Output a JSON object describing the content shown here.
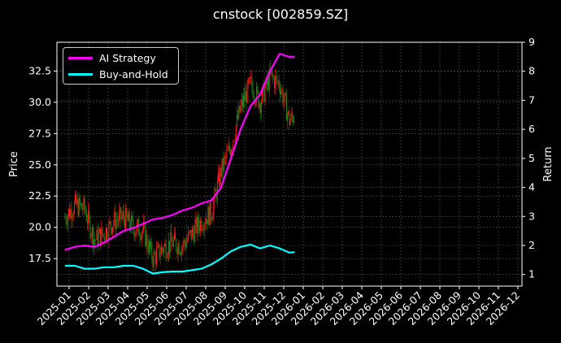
{
  "title": "cnstock [002859.SZ]",
  "colors": {
    "background": "#000000",
    "ai_strategy": "#ff00ff",
    "buy_and_hold": "#00ffff",
    "candle_up": "#ff1a1a",
    "candle_down": "#1a8c1a",
    "grid": "#555555",
    "axis": "#ffffff"
  },
  "legend": {
    "items": [
      {
        "label": "AI Strategy",
        "color": "#ff00ff"
      },
      {
        "label": "Buy-and-Hold",
        "color": "#00ffff"
      }
    ]
  },
  "chart_data": {
    "type": "line",
    "title": "cnstock [002859.SZ]",
    "xlabel": "",
    "ylabel": "Price",
    "ylabel_right": "Return",
    "grid": true,
    "legend_position": "upper left",
    "x_ticks": [
      "2025-01",
      "2025-02",
      "2025-03",
      "2025-04",
      "2025-05",
      "2025-06",
      "2025-07",
      "2025-08",
      "2025-09",
      "2025-10",
      "2025-11",
      "2025-12",
      "2026-01",
      "2026-02",
      "2026-03",
      "2026-04",
      "2026-05",
      "2026-06",
      "2026-07",
      "2026-08",
      "2026-09",
      "2026-10",
      "2026-11",
      "2026-12"
    ],
    "y_left_ticks": [
      17.5,
      20.0,
      22.5,
      25.0,
      27.5,
      30.0,
      32.5
    ],
    "y_left_range": [
      15.3,
      34.8
    ],
    "y_right_ticks": [
      1,
      2,
      3,
      4,
      5,
      6,
      7,
      8,
      9
    ],
    "y_right_range": [
      0.6,
      9.0
    ],
    "x": [
      "2024-12-25",
      "2025-01-10",
      "2025-01-25",
      "2025-02-10",
      "2025-02-25",
      "2025-03-10",
      "2025-03-25",
      "2025-04-10",
      "2025-04-25",
      "2025-05-10",
      "2025-05-25",
      "2025-06-10",
      "2025-06-25",
      "2025-07-10",
      "2025-07-25",
      "2025-08-10",
      "2025-08-25",
      "2025-09-10",
      "2025-09-25",
      "2025-10-10",
      "2025-10-25",
      "2025-11-10",
      "2025-11-25",
      "2025-12-10",
      "2025-12-18"
    ],
    "series": [
      {
        "name": "Price (candlestick close)",
        "axis": "left",
        "values": [
          20.8,
          21.8,
          21.5,
          19.0,
          19.5,
          20.5,
          20.8,
          20.0,
          19.8,
          17.5,
          18.3,
          18.8,
          18.5,
          19.5,
          20.5,
          21.2,
          24.5,
          26.5,
          29.5,
          31.5,
          30.0,
          32.0,
          31.5,
          28.5,
          29.0
        ]
      },
      {
        "name": "AI Strategy",
        "axis": "right",
        "values": [
          1.85,
          1.95,
          2.0,
          1.95,
          2.1,
          2.3,
          2.5,
          2.6,
          2.75,
          2.9,
          2.95,
          3.05,
          3.2,
          3.3,
          3.45,
          3.55,
          4.0,
          5.0,
          6.0,
          6.8,
          7.2,
          8.0,
          8.6,
          8.5,
          8.5
        ]
      },
      {
        "name": "Buy-and-Hold",
        "axis": "right",
        "values": [
          1.3,
          1.3,
          1.2,
          1.2,
          1.25,
          1.25,
          1.3,
          1.3,
          1.2,
          1.03,
          1.08,
          1.1,
          1.1,
          1.15,
          1.2,
          1.35,
          1.55,
          1.8,
          1.95,
          2.03,
          1.9,
          2.0,
          1.9,
          1.75,
          1.77
        ]
      }
    ]
  }
}
